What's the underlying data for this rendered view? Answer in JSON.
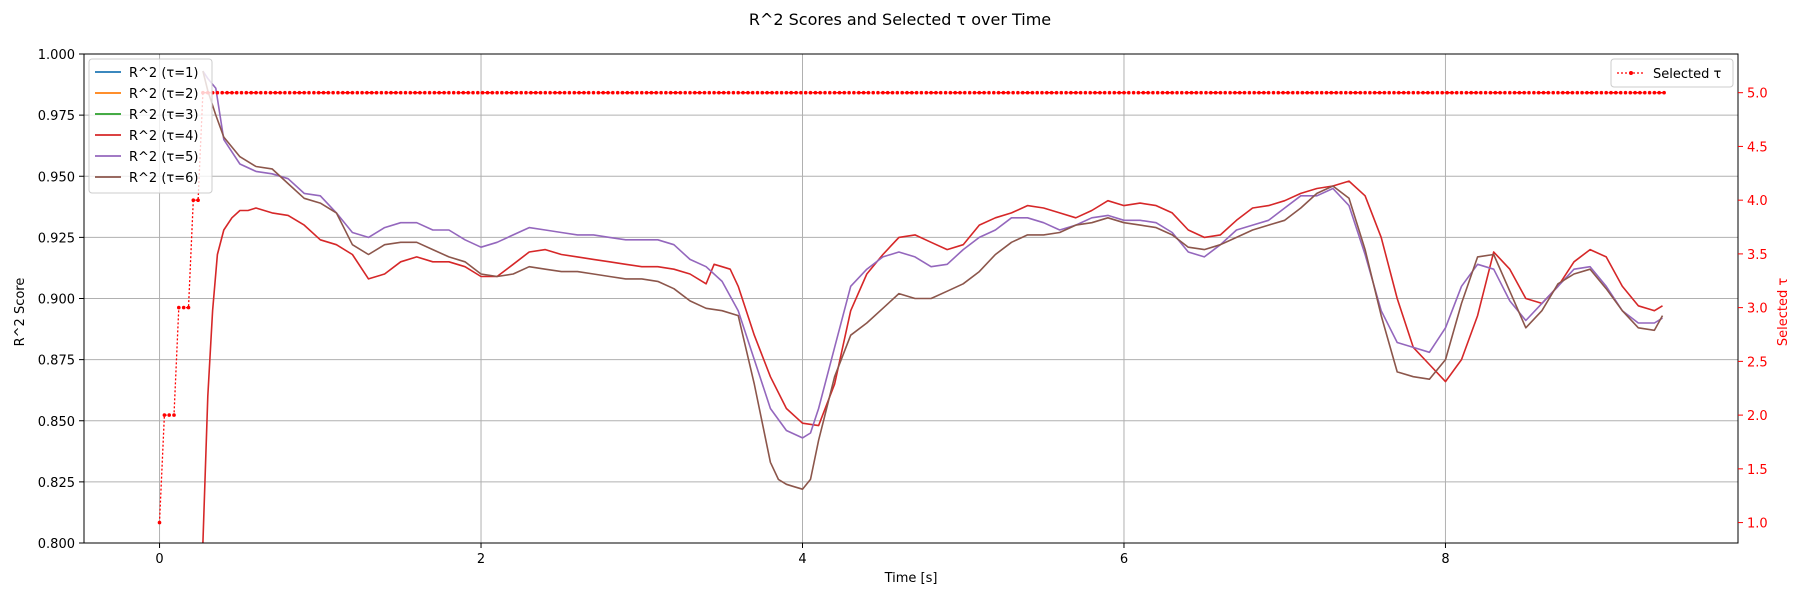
{
  "chart_data": {
    "type": "line",
    "title": "R^2 Scores and Selected τ over Time",
    "xlabel": "Time [s]",
    "ylabel": "R^2 Score",
    "y2label": "Selected τ",
    "xlim": [
      -0.47,
      9.82
    ],
    "ylim": [
      0.8,
      1.0
    ],
    "y2lim": [
      0.81,
      5.36
    ],
    "xticks": [
      "0",
      "2",
      "4",
      "6",
      "8"
    ],
    "yticks": [
      "0.800",
      "0.825",
      "0.850",
      "0.875",
      "0.900",
      "0.925",
      "0.950",
      "0.975",
      "1.000"
    ],
    "y2ticks": [
      "1.0",
      "1.5",
      "2.0",
      "2.5",
      "3.0",
      "3.5",
      "4.0",
      "4.5",
      "5.0"
    ],
    "grid": true,
    "legend_left_position": "upper-left",
    "legend_right_position": "upper-right",
    "series": [
      {
        "name": "R^2 (τ=1)",
        "color": "#1f77b4",
        "x": [],
        "y": []
      },
      {
        "name": "R^2 (τ=2)",
        "color": "#ff7f0e",
        "x": [],
        "y": []
      },
      {
        "name": "R^2 (τ=3)",
        "color": "#2ca02c",
        "x": [],
        "y": []
      },
      {
        "name": "R^2 (τ=4)",
        "color": "#d62728",
        "x": [
          0.27,
          0.3,
          0.33,
          0.36,
          0.4,
          0.45,
          0.5,
          0.55,
          0.6,
          0.7,
          0.8,
          0.9,
          1.0,
          1.1,
          1.2,
          1.3,
          1.4,
          1.5,
          1.6,
          1.7,
          1.8,
          1.9,
          2.0,
          2.1,
          2.2,
          2.3,
          2.4,
          2.5,
          2.6,
          2.7,
          2.8,
          2.9,
          3.0,
          3.1,
          3.2,
          3.3,
          3.4,
          3.45,
          3.5,
          3.55,
          3.6,
          3.7,
          3.8,
          3.9,
          4.0,
          4.1,
          4.2,
          4.3,
          4.4,
          4.5,
          4.6,
          4.7,
          4.8,
          4.9,
          5.0,
          5.1,
          5.2,
          5.3,
          5.4,
          5.5,
          5.6,
          5.7,
          5.8,
          5.9,
          6.0,
          6.1,
          6.2,
          6.3,
          6.4,
          6.5,
          6.6,
          6.7,
          6.8,
          6.9,
          7.0,
          7.1,
          7.2,
          7.3,
          7.4,
          7.5,
          7.6,
          7.7,
          7.8,
          7.9,
          8.0,
          8.1,
          8.2,
          8.3,
          8.4,
          8.5,
          8.6,
          8.7,
          8.8,
          8.9,
          9.0,
          9.1,
          9.2,
          9.3,
          9.35
        ],
        "y": [
          0.8,
          0.86,
          0.895,
          0.918,
          0.928,
          0.933,
          0.936,
          0.936,
          0.937,
          0.935,
          0.934,
          0.93,
          0.924,
          0.922,
          0.918,
          0.908,
          0.91,
          0.915,
          0.917,
          0.915,
          0.915,
          0.913,
          0.909,
          0.909,
          0.914,
          0.919,
          0.92,
          0.918,
          0.917,
          0.916,
          0.915,
          0.914,
          0.913,
          0.913,
          0.912,
          0.91,
          0.906,
          0.914,
          0.913,
          0.912,
          0.905,
          0.885,
          0.868,
          0.855,
          0.849,
          0.848,
          0.865,
          0.895,
          0.91,
          0.918,
          0.925,
          0.926,
          0.923,
          0.92,
          0.922,
          0.93,
          0.933,
          0.935,
          0.938,
          0.937,
          0.935,
          0.933,
          0.936,
          0.94,
          0.938,
          0.939,
          0.938,
          0.935,
          0.928,
          0.925,
          0.926,
          0.932,
          0.937,
          0.938,
          0.94,
          0.943,
          0.945,
          0.946,
          0.948,
          0.942,
          0.925,
          0.9,
          0.88,
          0.873,
          0.866,
          0.875,
          0.893,
          0.919,
          0.912,
          0.9,
          0.898,
          0.905,
          0.915,
          0.92,
          0.917,
          0.905,
          0.897,
          0.895,
          0.897
        ]
      },
      {
        "name": "R^2 (τ=5)",
        "color": "#9467bd",
        "x": [
          0.27,
          0.3,
          0.35,
          0.4,
          0.5,
          0.6,
          0.7,
          0.8,
          0.9,
          1.0,
          1.1,
          1.2,
          1.3,
          1.4,
          1.5,
          1.6,
          1.7,
          1.8,
          1.9,
          2.0,
          2.1,
          2.2,
          2.3,
          2.4,
          2.5,
          2.6,
          2.7,
          2.8,
          2.9,
          3.0,
          3.1,
          3.2,
          3.3,
          3.4,
          3.5,
          3.6,
          3.7,
          3.8,
          3.9,
          4.0,
          4.05,
          4.1,
          4.2,
          4.3,
          4.4,
          4.5,
          4.6,
          4.7,
          4.8,
          4.9,
          5.0,
          5.1,
          5.2,
          5.3,
          5.4,
          5.5,
          5.6,
          5.7,
          5.8,
          5.9,
          6.0,
          6.1,
          6.2,
          6.3,
          6.4,
          6.5,
          6.6,
          6.7,
          6.8,
          6.9,
          7.0,
          7.1,
          7.2,
          7.3,
          7.4,
          7.5,
          7.6,
          7.7,
          7.8,
          7.9,
          8.0,
          8.1,
          8.2,
          8.3,
          8.4,
          8.5,
          8.6,
          8.7,
          8.8,
          8.9,
          9.0,
          9.1,
          9.2,
          9.3,
          9.35
        ],
        "y": [
          0.993,
          0.99,
          0.986,
          0.965,
          0.955,
          0.952,
          0.951,
          0.949,
          0.943,
          0.942,
          0.935,
          0.927,
          0.925,
          0.929,
          0.931,
          0.931,
          0.928,
          0.928,
          0.924,
          0.921,
          0.923,
          0.926,
          0.929,
          0.928,
          0.927,
          0.926,
          0.926,
          0.925,
          0.924,
          0.924,
          0.924,
          0.922,
          0.916,
          0.913,
          0.907,
          0.895,
          0.875,
          0.855,
          0.846,
          0.843,
          0.845,
          0.855,
          0.88,
          0.905,
          0.912,
          0.917,
          0.919,
          0.917,
          0.913,
          0.914,
          0.92,
          0.925,
          0.928,
          0.933,
          0.933,
          0.931,
          0.928,
          0.93,
          0.933,
          0.934,
          0.932,
          0.932,
          0.931,
          0.927,
          0.919,
          0.917,
          0.922,
          0.928,
          0.93,
          0.932,
          0.937,
          0.942,
          0.942,
          0.945,
          0.938,
          0.918,
          0.895,
          0.882,
          0.88,
          0.878,
          0.888,
          0.905,
          0.914,
          0.912,
          0.899,
          0.891,
          0.898,
          0.905,
          0.912,
          0.913,
          0.905,
          0.895,
          0.89,
          0.89,
          0.892
        ]
      },
      {
        "name": "R^2 (τ=6)",
        "color": "#8c564b",
        "x": [
          0.27,
          0.3,
          0.35,
          0.4,
          0.5,
          0.6,
          0.7,
          0.8,
          0.9,
          1.0,
          1.1,
          1.2,
          1.3,
          1.4,
          1.5,
          1.6,
          1.7,
          1.8,
          1.9,
          2.0,
          2.1,
          2.2,
          2.3,
          2.4,
          2.5,
          2.6,
          2.7,
          2.8,
          2.9,
          3.0,
          3.1,
          3.2,
          3.3,
          3.4,
          3.5,
          3.6,
          3.7,
          3.8,
          3.85,
          3.9,
          3.95,
          4.0,
          4.05,
          4.1,
          4.2,
          4.3,
          4.4,
          4.5,
          4.6,
          4.7,
          4.8,
          4.9,
          5.0,
          5.1,
          5.2,
          5.3,
          5.4,
          5.5,
          5.6,
          5.7,
          5.8,
          5.9,
          6.0,
          6.1,
          6.2,
          6.3,
          6.4,
          6.5,
          6.6,
          6.7,
          6.8,
          6.9,
          7.0,
          7.1,
          7.2,
          7.3,
          7.4,
          7.5,
          7.6,
          7.7,
          7.8,
          7.9,
          8.0,
          8.1,
          8.2,
          8.3,
          8.4,
          8.5,
          8.6,
          8.7,
          8.8,
          8.9,
          9.0,
          9.1,
          9.2,
          9.3,
          9.35
        ],
        "y": [
          0.993,
          0.985,
          0.975,
          0.966,
          0.958,
          0.954,
          0.953,
          0.947,
          0.941,
          0.939,
          0.935,
          0.922,
          0.918,
          0.922,
          0.923,
          0.923,
          0.92,
          0.917,
          0.915,
          0.91,
          0.909,
          0.91,
          0.913,
          0.912,
          0.911,
          0.911,
          0.91,
          0.909,
          0.908,
          0.908,
          0.907,
          0.904,
          0.899,
          0.896,
          0.895,
          0.893,
          0.865,
          0.833,
          0.826,
          0.824,
          0.823,
          0.822,
          0.826,
          0.842,
          0.868,
          0.885,
          0.89,
          0.896,
          0.902,
          0.9,
          0.9,
          0.903,
          0.906,
          0.911,
          0.918,
          0.923,
          0.926,
          0.926,
          0.927,
          0.93,
          0.931,
          0.933,
          0.931,
          0.93,
          0.929,
          0.926,
          0.921,
          0.92,
          0.922,
          0.925,
          0.928,
          0.93,
          0.932,
          0.937,
          0.943,
          0.946,
          0.941,
          0.92,
          0.893,
          0.87,
          0.868,
          0.867,
          0.875,
          0.898,
          0.917,
          0.918,
          0.903,
          0.888,
          0.895,
          0.906,
          0.91,
          0.912,
          0.904,
          0.895,
          0.888,
          0.887,
          0.893
        ]
      }
    ],
    "selected_tau": {
      "name": "Selected τ",
      "color": "#ff0000",
      "x0": 0.0,
      "dx": 0.03,
      "n": 313,
      "values_head": [
        1,
        2,
        2,
        2,
        3,
        3,
        3,
        4,
        4,
        5
      ],
      "values_tail_constant": 5
    }
  }
}
